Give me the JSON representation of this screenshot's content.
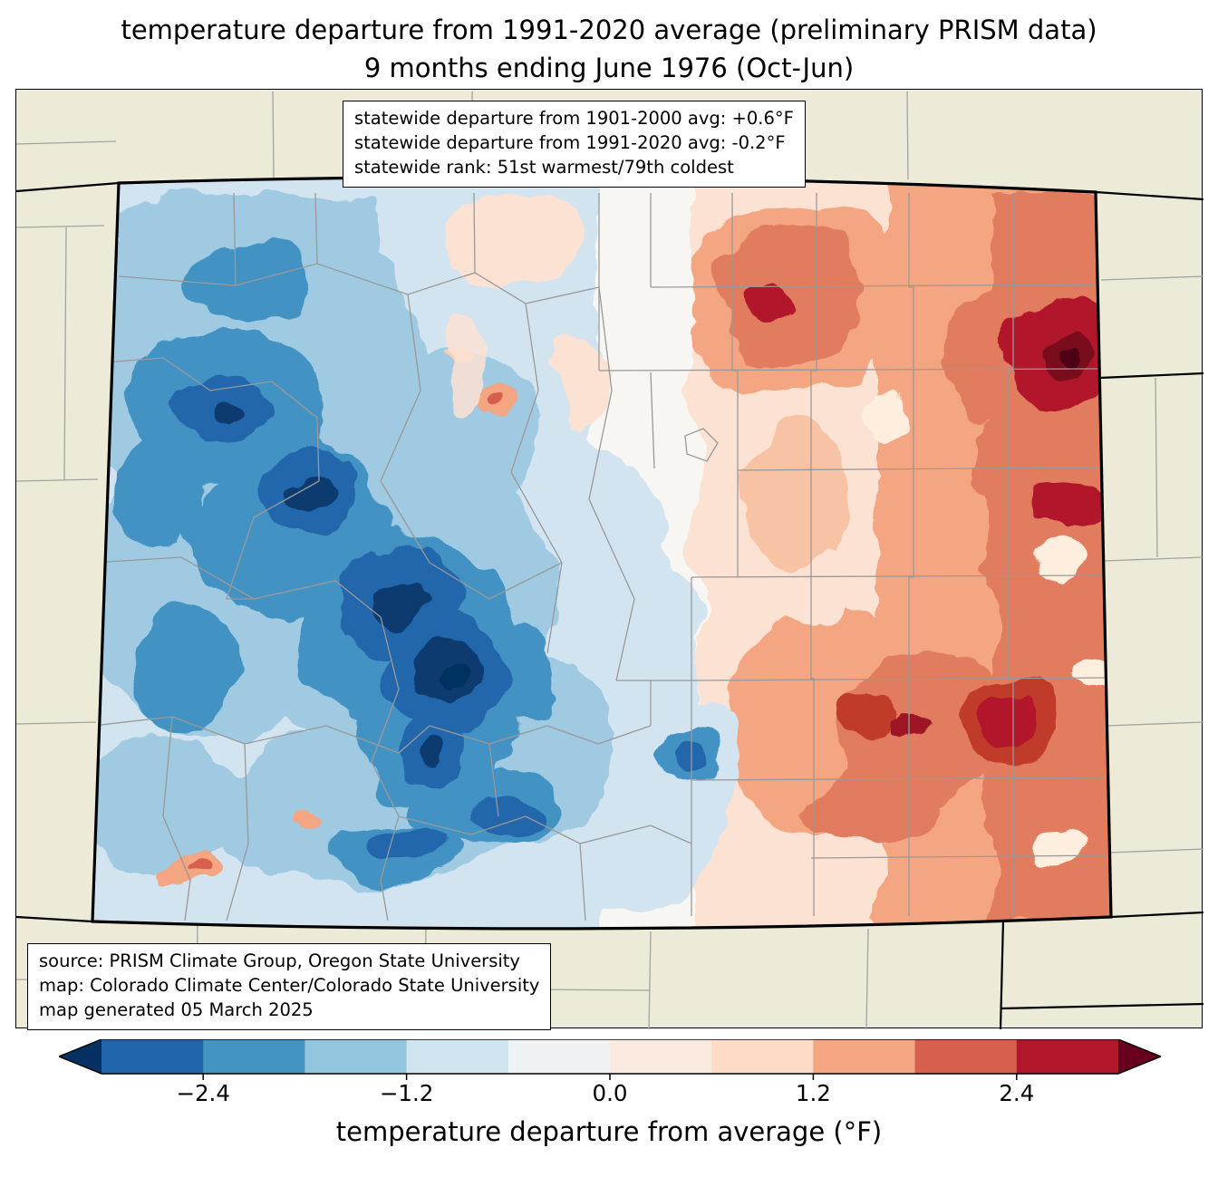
{
  "title": {
    "line1": "temperature departure from 1991-2020 average (preliminary PRISM data)",
    "line2": "9 months ending June 1976 (Oct-Jun)"
  },
  "info_box": {
    "line1": "statewide departure from 1901-2000 avg: +0.6°F",
    "line2": "statewide departure from 1991-2020 avg: -0.2°F",
    "line3": "statewide rank: 51st warmest/79th coldest"
  },
  "source_box": {
    "line1": "source: PRISM Climate Group, Oregon State University",
    "line2": "map: Colorado Climate Center/Colorado State University",
    "line3": "map generated 05 March 2025"
  },
  "map": {
    "region": "Colorado",
    "background_color": "#edead8",
    "county_line_color": "#999999",
    "state_border_color": "#000000"
  },
  "colorbar": {
    "label": "temperature departure from average (°F)",
    "range": [
      -3,
      3
    ],
    "ticks": [
      "−2.4",
      "−1.2",
      "0.0",
      "1.2",
      "2.4"
    ],
    "tick_values": [
      -2.4,
      -1.2,
      0.0,
      1.2,
      2.4
    ],
    "segment_colors": [
      "#2166ac",
      "#4393c3",
      "#92c5de",
      "#d1e5f0",
      "#eef2f5",
      "#faeae0",
      "#fddbc7",
      "#f4a582",
      "#d6604d",
      "#b2182b"
    ],
    "under_color": "#053061",
    "over_color": "#67001f"
  }
}
